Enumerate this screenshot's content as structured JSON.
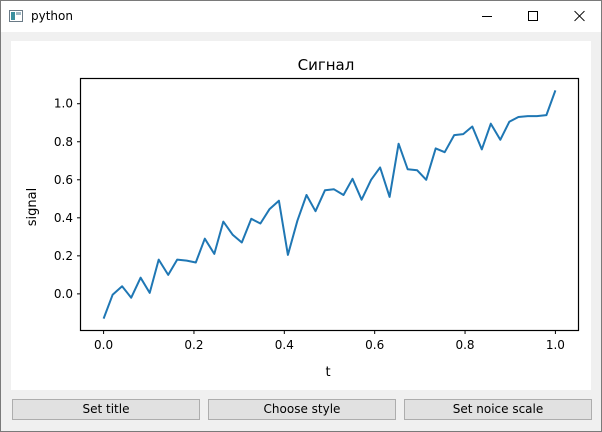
{
  "window": {
    "title": "python",
    "icon": "python-app-icon"
  },
  "window_controls": [
    "minimize-icon",
    "maximize-icon",
    "close-icon"
  ],
  "buttons": {
    "set_title": "Set title",
    "choose_style": "Choose style",
    "set_noise_scale": "Set noice scale"
  },
  "chart_data": {
    "type": "line",
    "title": "Сигнал",
    "xlabel": "t",
    "ylabel": "signal",
    "xlim": [
      -0.05,
      1.05
    ],
    "ylim": [
      -0.19,
      1.13
    ],
    "xticks": [
      "0.0",
      "0.2",
      "0.4",
      "0.6",
      "0.8",
      "1.0"
    ],
    "yticks": [
      "0.0",
      "0.2",
      "0.4",
      "0.6",
      "0.8",
      "1.0"
    ],
    "grid": false,
    "series": [
      {
        "color": "#1f77b4",
        "x": [
          0.0,
          0.02,
          0.041,
          0.061,
          0.082,
          0.102,
          0.122,
          0.143,
          0.163,
          0.184,
          0.204,
          0.224,
          0.245,
          0.265,
          0.286,
          0.306,
          0.327,
          0.347,
          0.367,
          0.388,
          0.408,
          0.429,
          0.449,
          0.469,
          0.49,
          0.51,
          0.531,
          0.551,
          0.571,
          0.592,
          0.612,
          0.633,
          0.653,
          0.673,
          0.694,
          0.714,
          0.735,
          0.755,
          0.776,
          0.796,
          0.816,
          0.837,
          0.857,
          0.878,
          0.898,
          0.918,
          0.939,
          0.959,
          0.98,
          1.0
        ],
        "y": [
          -0.13,
          -0.005,
          0.04,
          -0.02,
          0.085,
          0.005,
          0.18,
          0.1,
          0.18,
          0.175,
          0.165,
          0.29,
          0.21,
          0.38,
          0.31,
          0.27,
          0.395,
          0.37,
          0.445,
          0.49,
          0.205,
          0.385,
          0.52,
          0.435,
          0.545,
          0.55,
          0.52,
          0.605,
          0.495,
          0.6,
          0.665,
          0.51,
          0.79,
          0.655,
          0.65,
          0.6,
          0.765,
          0.745,
          0.835,
          0.84,
          0.88,
          0.76,
          0.895,
          0.81,
          0.905,
          0.93,
          0.935,
          0.935,
          0.94,
          1.07
        ]
      }
    ]
  }
}
